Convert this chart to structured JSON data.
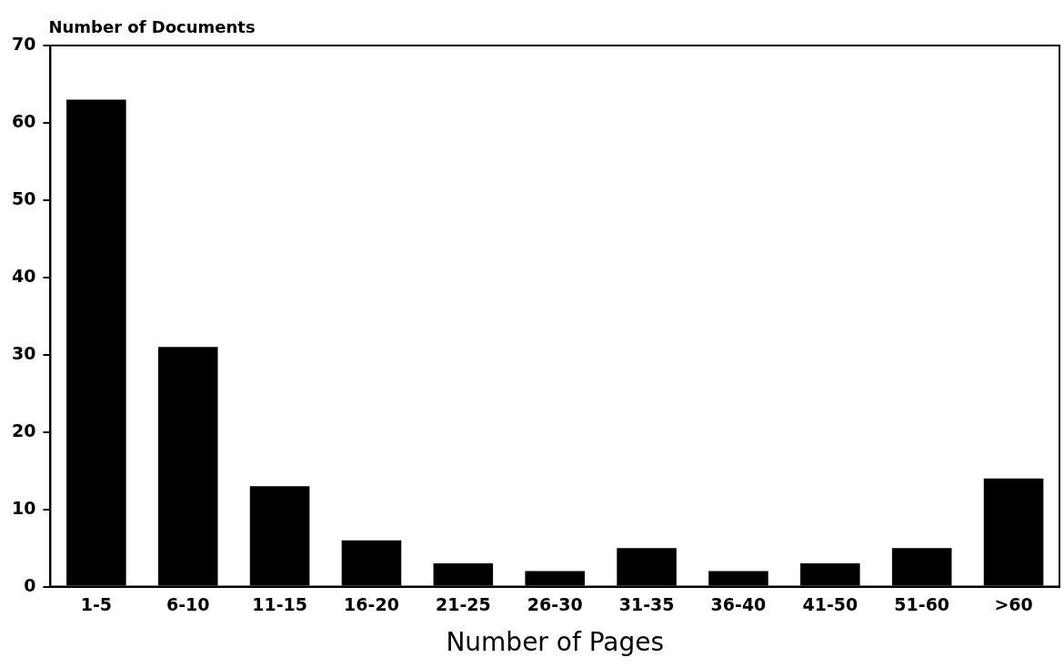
{
  "chart_data": {
    "type": "bar",
    "ylabel": "Number of Documents",
    "xlabel": "Number of Pages",
    "categories": [
      "1-5",
      "6-10",
      "11-15",
      "16-20",
      "21-25",
      "26-30",
      "31-35",
      "36-40",
      "41-50",
      "51-60",
      ">60"
    ],
    "values": [
      63,
      31,
      13,
      6,
      3,
      2,
      5,
      2,
      3,
      5,
      14
    ],
    "color": "#000000",
    "ylim": [
      0,
      70
    ],
    "yticks": [
      0,
      10,
      20,
      30,
      40,
      50,
      60,
      70
    ],
    "grid": false,
    "legend": false
  }
}
